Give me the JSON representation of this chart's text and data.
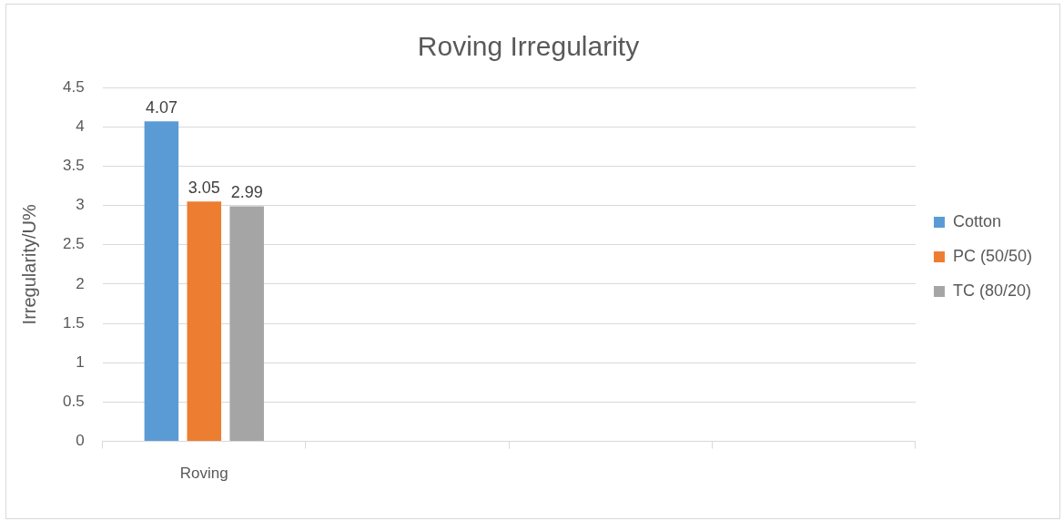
{
  "chart_data": {
    "type": "bar",
    "title": "Roving Irregularity",
    "ylabel": "Irregularity/U%",
    "categories": [
      "Roving",
      null,
      null,
      null
    ],
    "series": [
      {
        "name": "Cotton",
        "color": "#5b9bd5",
        "values": [
          4.07,
          null,
          null,
          null
        ]
      },
      {
        "name": "PC (50/50)",
        "color": "#ed7d31",
        "values": [
          3.05,
          null,
          null,
          null
        ]
      },
      {
        "name": "TC (80/20)",
        "color": "#a5a5a5",
        "values": [
          2.99,
          null,
          null,
          null
        ]
      }
    ],
    "ylim": [
      0,
      4.5
    ],
    "yticks": [
      0,
      0.5,
      1,
      1.5,
      2,
      2.5,
      3,
      3.5,
      4,
      4.5
    ],
    "grid": "y",
    "legend": "right",
    "data_labels": true
  }
}
